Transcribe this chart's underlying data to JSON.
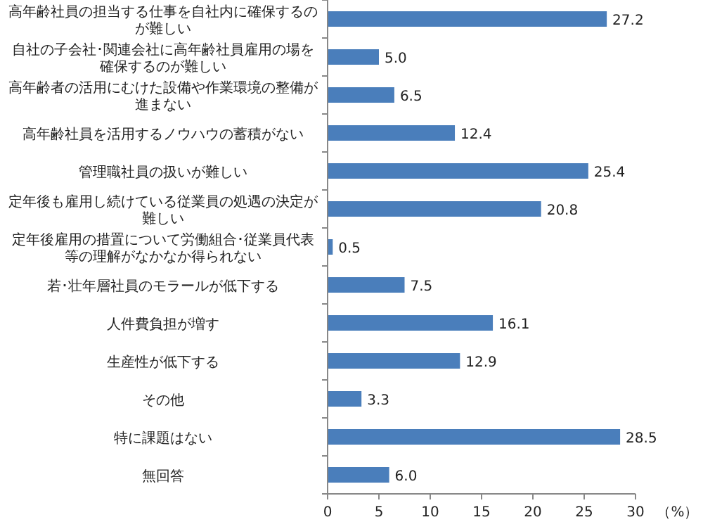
{
  "chart_data": {
    "type": "bar",
    "orientation": "horizontal",
    "xlabel": "（%）",
    "categories": [
      "高年齢社員の担当する仕事を自社内に確保するのが難しい",
      "自社の子会社･関連会社に高年齢社員雇用の場を確保するのが難しい",
      "高年齢者の活用にむけた設備や作業環境の整備が進まない",
      "高年齢社員を活用するノウハウの蓄積がない",
      "管理職社員の扱いが難しい",
      "定年後も雇用し続けている従業員の処遇の決定が難しい",
      "定年後雇用の措置について労働組合･従業員代表等の理解がなかなか得られない",
      "若･壮年層社員のモラールが低下する",
      "人件費負担が増す",
      "生産性が低下する",
      "その他",
      "特に課題はない",
      "無回答"
    ],
    "values": [
      27.2,
      5.0,
      6.5,
      12.4,
      25.4,
      20.8,
      0.5,
      7.5,
      16.1,
      12.9,
      3.3,
      28.5,
      6.0
    ],
    "value_labels": [
      "27.2",
      "5.0",
      "6.5",
      "12.4",
      "25.4",
      "20.8",
      "0.5",
      "7.5",
      "16.1",
      "12.9",
      "3.3",
      "28.5",
      "6.0"
    ],
    "color": "#4a7ebb",
    "xlim": [
      0,
      30
    ],
    "xticks": [
      0,
      5,
      10,
      15,
      20,
      25,
      30
    ],
    "grid": false
  }
}
